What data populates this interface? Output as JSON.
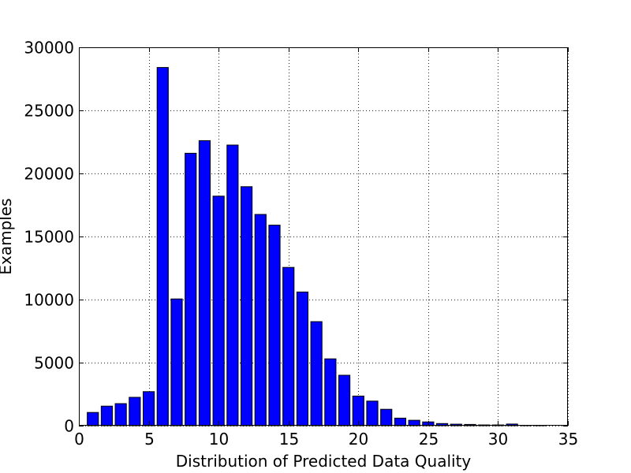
{
  "chart_data": {
    "type": "bar",
    "title": "",
    "xlabel": "Distribution of Predicted Data Quality",
    "ylabel": "Examples",
    "xlim": [
      0,
      35
    ],
    "ylim": [
      0,
      30000
    ],
    "x_ticks": [
      0,
      5,
      10,
      15,
      20,
      25,
      30,
      35
    ],
    "y_ticks": [
      0,
      5000,
      10000,
      15000,
      20000,
      25000,
      30000
    ],
    "grid": true,
    "bar_color": "#0000ff",
    "bar_width": 0.8,
    "x": [
      1,
      2,
      3,
      4,
      5,
      6,
      7,
      8,
      9,
      10,
      11,
      12,
      13,
      14,
      15,
      16,
      17,
      18,
      19,
      20,
      21,
      22,
      23,
      24,
      25,
      26,
      27,
      28,
      29,
      30,
      31,
      32,
      33
    ],
    "values": [
      1050,
      1550,
      1750,
      2250,
      2700,
      28400,
      10050,
      21600,
      22600,
      18200,
      22250,
      18950,
      16750,
      15900,
      12550,
      10600,
      8250,
      5300,
      4000,
      2350,
      1950,
      1300,
      600,
      430,
      300,
      170,
      120,
      100,
      60,
      60,
      130,
      30,
      20
    ]
  }
}
